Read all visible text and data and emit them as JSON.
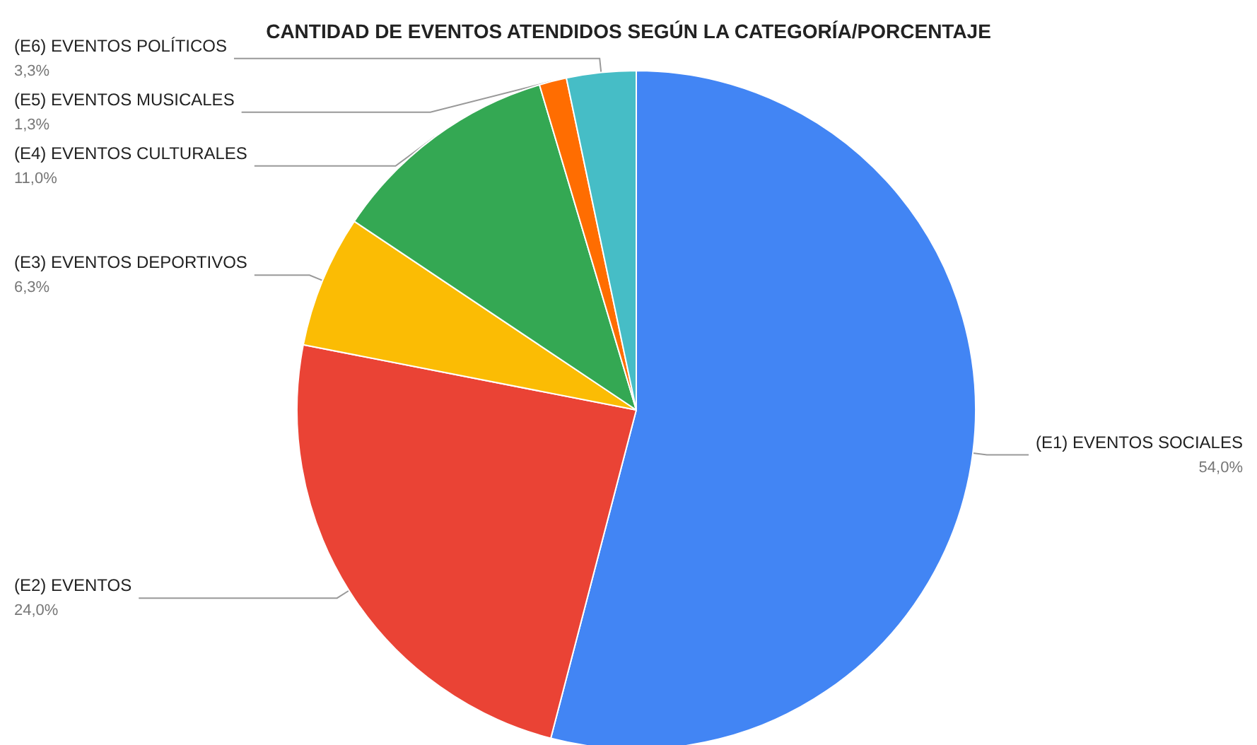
{
  "chart_data": {
    "type": "pie",
    "title": "CANTIDAD DE EVENTOS ATENDIDOS SEGÚN LA CATEGORÍA/PORCENTAJE",
    "categories": [
      "(E1) EVENTOS SOCIALES",
      "(E2) EVENTOS",
      "(E3) EVENTOS DEPORTIVOS",
      "(E4) EVENTOS CULTURALES",
      "(E5) EVENTOS MUSICALES",
      "(E6) EVENTOS POLÍTICOS"
    ],
    "values": [
      54.0,
      24.0,
      6.3,
      11.0,
      1.3,
      3.3
    ],
    "value_labels": [
      "54,0%",
      "24,0%",
      "6,3%",
      "11,0%",
      "1,3%",
      "3,3%"
    ],
    "colors": [
      "#4285f4",
      "#ea4335",
      "#fbbc04",
      "#34a853",
      "#ff6d01",
      "#46bdc6"
    ]
  }
}
